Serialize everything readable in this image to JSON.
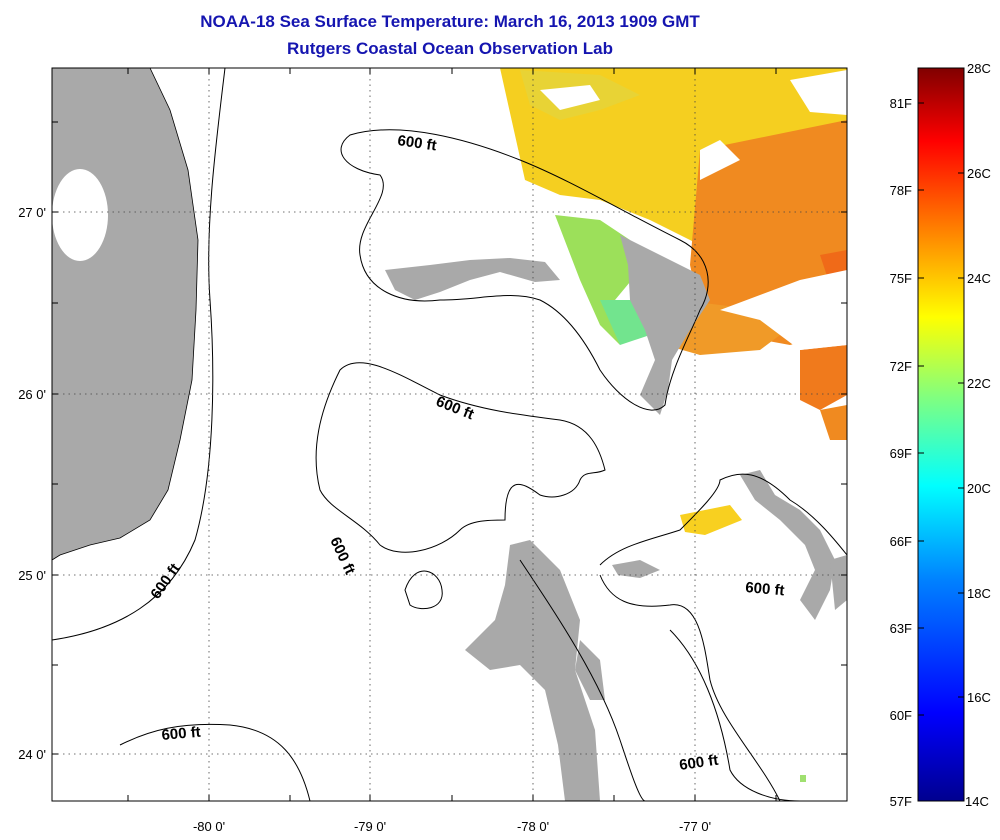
{
  "title": "NOAA-18 Sea Surface Temperature:  March 16, 2013 1909 GMT",
  "subtitle": "Rutgers Coastal Ocean Observation Lab",
  "map": {
    "lon_labels": [
      "-80 0'",
      "-79 0'",
      "-78 0'",
      "-77 0'"
    ],
    "lat_labels": [
      "27 0'",
      "26 0'",
      "25 0'",
      "24 0'"
    ],
    "contour_labels": [
      "600 ft",
      "600 ft",
      "600 ft",
      "600 ft",
      "600 ft",
      "600 ft"
    ],
    "land_color": "#a9a9a9",
    "contour_color": "#000000",
    "grid": "dotted"
  },
  "colorbar": {
    "fahrenheit_labels": [
      "81F",
      "78F",
      "75F",
      "72F",
      "69F",
      "66F",
      "63F",
      "60F",
      "57F"
    ],
    "celsius_labels": [
      "28C",
      "26C",
      "24C",
      "22C",
      "20C",
      "18C",
      "16C",
      "14C"
    ],
    "range_c": [
      14,
      28
    ],
    "colors": [
      "#00008f",
      "#0000ff",
      "#0080ff",
      "#00ffff",
      "#80ff80",
      "#ffff00",
      "#ff8000",
      "#ff0000",
      "#800000"
    ]
  }
}
